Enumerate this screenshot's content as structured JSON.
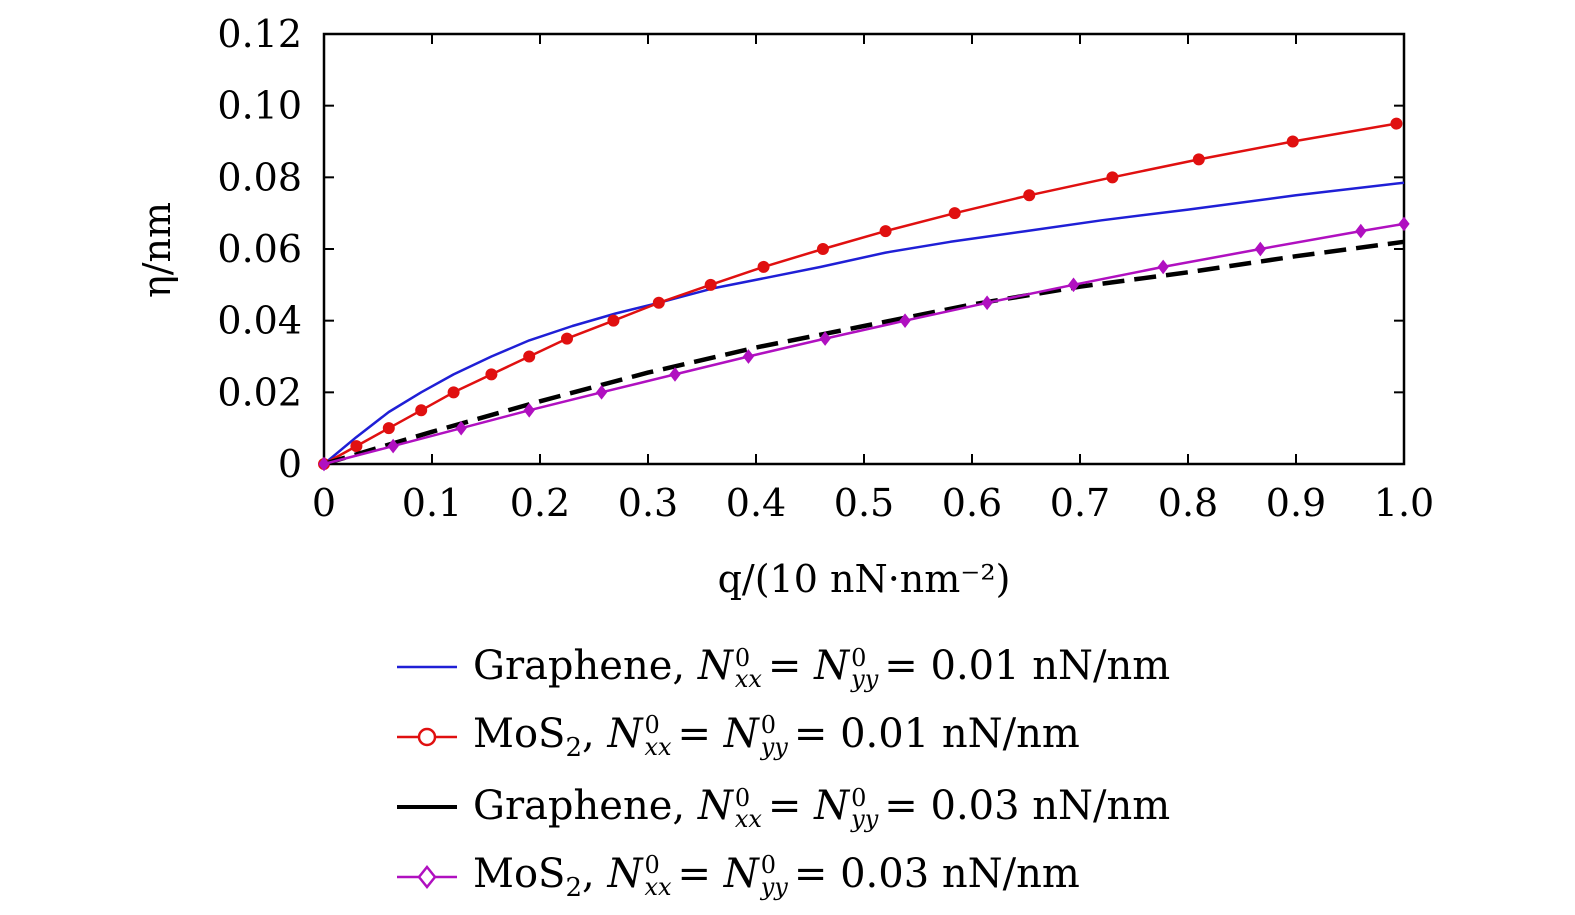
{
  "chart_data": {
    "type": "line",
    "title": "",
    "xlabel": "q/(10 nN·nm⁻²)",
    "ylabel": "η/nm",
    "xlim": [
      0,
      1.0
    ],
    "ylim": [
      0,
      0.12
    ],
    "xticks": [
      0,
      0.1,
      0.2,
      0.3,
      0.4,
      0.5,
      0.6,
      0.7,
      0.8,
      0.9,
      1.0
    ],
    "xtick_labels": [
      "0",
      "0.1",
      "0.2",
      "0.3",
      "0.4",
      "0.5",
      "0.6",
      "0.7",
      "0.8",
      "0.9",
      "1.0"
    ],
    "yticks": [
      0,
      0.02,
      0.04,
      0.06,
      0.08,
      0.1,
      0.12
    ],
    "ytick_labels": [
      "0",
      "0.02",
      "0.04",
      "0.06",
      "0.08",
      "0.10",
      "0.12"
    ],
    "grid": false,
    "legend_position": "below",
    "series": [
      {
        "name": "Graphene, N0xx = N0yy = 0.01 nN/nm",
        "color": "#1f1fd6",
        "style": "solid",
        "marker": "none",
        "x": [
          0,
          0.03,
          0.06,
          0.09,
          0.12,
          0.155,
          0.19,
          0.23,
          0.27,
          0.31,
          0.36,
          0.41,
          0.46,
          0.52,
          0.58,
          0.65,
          0.72,
          0.8,
          0.9,
          1.0
        ],
        "y": [
          0,
          0.0075,
          0.0145,
          0.02,
          0.025,
          0.03,
          0.0345,
          0.0385,
          0.042,
          0.045,
          0.049,
          0.052,
          0.055,
          0.059,
          0.062,
          0.065,
          0.068,
          0.071,
          0.075,
          0.0785
        ]
      },
      {
        "name": "MoS2, N0xx = N0yy = 0.01 nN/nm",
        "color": "#e01010",
        "style": "solid",
        "marker": "circle",
        "x": [
          0,
          0.03,
          0.06,
          0.09,
          0.12,
          0.155,
          0.19,
          0.225,
          0.268,
          0.31,
          0.358,
          0.407,
          0.462,
          0.52,
          0.584,
          0.653,
          0.73,
          0.81,
          0.897,
          0.993
        ],
        "y": [
          0,
          0.005,
          0.01,
          0.015,
          0.02,
          0.025,
          0.03,
          0.035,
          0.04,
          0.045,
          0.05,
          0.055,
          0.06,
          0.065,
          0.07,
          0.075,
          0.08,
          0.085,
          0.09,
          0.095
        ]
      },
      {
        "name": "Graphene, N0xx = N0yy = 0.03 nN/nm",
        "color": "#000000",
        "style": "dashed",
        "marker": "none",
        "x": [
          0,
          0.1,
          0.2,
          0.3,
          0.4,
          0.5,
          0.6,
          0.7,
          0.8,
          0.9,
          1.0
        ],
        "y": [
          0,
          0.009,
          0.0175,
          0.0255,
          0.0325,
          0.0385,
          0.0445,
          0.0495,
          0.0535,
          0.058,
          0.062
        ]
      },
      {
        "name": "MoS2, N0xx = N0yy = 0.03 nN/nm",
        "color": "#b010c0",
        "style": "solid",
        "marker": "diamond",
        "x": [
          0,
          0.064,
          0.127,
          0.19,
          0.257,
          0.325,
          0.393,
          0.464,
          0.538,
          0.614,
          0.694,
          0.777,
          0.867,
          0.96,
          1.0
        ],
        "y": [
          0,
          0.005,
          0.01,
          0.015,
          0.02,
          0.025,
          0.03,
          0.035,
          0.04,
          0.045,
          0.05,
          0.055,
          0.06,
          0.065,
          0.067
        ]
      }
    ]
  },
  "legend": [
    {
      "material": "Graphene",
      "sep": ",",
      "var": "N",
      "sup": "0",
      "sub1": "xx",
      "eq1": "=",
      "sub2": "yy",
      "eq2": "=",
      "value": "0.01 nN/nm"
    },
    {
      "material": "MoS",
      "material_sub": "2",
      "sep": ",",
      "var": "N",
      "sup": "0",
      "sub1": "xx",
      "eq1": "=",
      "sub2": "yy",
      "eq2": "=",
      "value": "0.01 nN/nm"
    },
    {
      "material": "Graphene",
      "sep": ",",
      "var": "N",
      "sup": "0",
      "sub1": "xx",
      "eq1": "=",
      "sub2": "yy",
      "eq2": "=",
      "value": "0.03 nN/nm"
    },
    {
      "material": "MoS",
      "material_sub": "2",
      "sep": ",",
      "var": "N",
      "sup": "0",
      "sub1": "xx",
      "eq1": "=",
      "sub2": "yy",
      "eq2": "=",
      "value": "0.03 nN/nm"
    }
  ]
}
